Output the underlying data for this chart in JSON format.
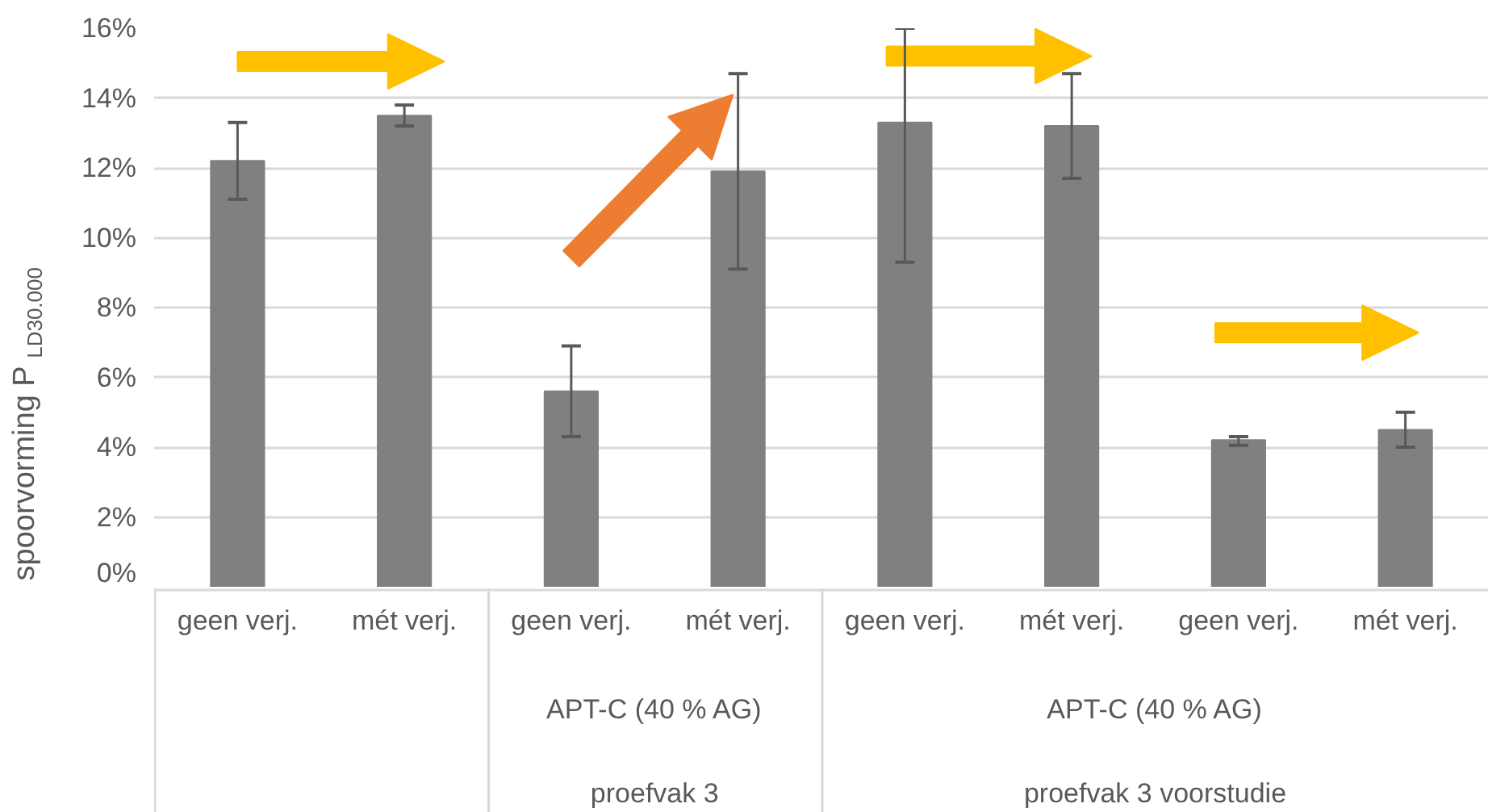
{
  "chart_data": {
    "type": "bar",
    "ylabel": "spoorvorming P$_{LD30.000}$",
    "categories": [
      "geen verj.",
      "mét verj.",
      "geen verj.",
      "mét verj.",
      "geen verj.",
      "mét verj.",
      "geen verj.",
      "mét verj."
    ],
    "values": [
      12.2,
      13.5,
      5.6,
      11.9,
      13.3,
      13.2,
      4.2,
      4.5
    ],
    "errors": [
      [
        11.1,
        13.3
      ],
      [
        13.2,
        13.8
      ],
      [
        4.3,
        6.9
      ],
      [
        9.1,
        14.7
      ],
      [
        9.3,
        16
      ],
      [
        11.7,
        14.7
      ],
      [
        4.05,
        4.3
      ],
      [
        4.0,
        5.0
      ]
    ],
    "color": "#808080",
    "ylim": [
      0,
      16
    ],
    "yticks": [
      {
        "value": 0,
        "label": "0%"
      },
      {
        "value": 2,
        "label": "2%"
      },
      {
        "value": 4,
        "label": "4%"
      },
      {
        "value": 6,
        "label": "6%"
      },
      {
        "value": 8,
        "label": "8%"
      },
      {
        "value": 10,
        "label": "10%"
      },
      {
        "value": 12,
        "label": "12%"
      },
      {
        "value": 14,
        "label": "14%"
      },
      {
        "value": 16,
        "label": "16%"
      }
    ],
    "grid": "y",
    "annotations": [
      "APT-C (40 % AG)",
      "proefvak 3",
      "APT-C (40 % AG)",
      "proefvak 3 voorstudie"
    ]
  }
}
